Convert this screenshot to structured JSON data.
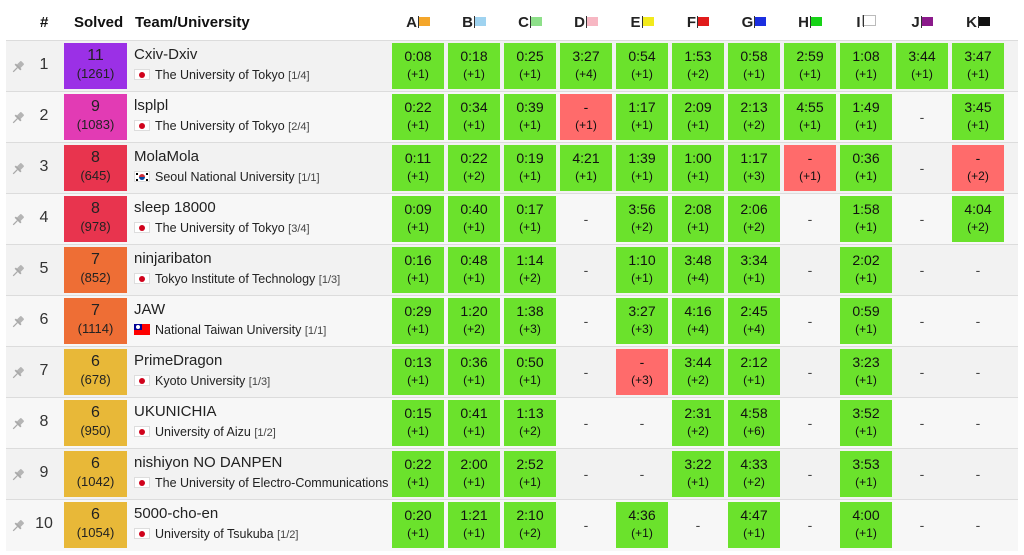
{
  "header": {
    "rank": "#",
    "solved": "Solved",
    "team": "Team/University",
    "problems": [
      {
        "label": "A",
        "flag_color": "#f4a62a"
      },
      {
        "label": "B",
        "flag_color": "#9fd3f0"
      },
      {
        "label": "C",
        "flag_color": "#8ee08a"
      },
      {
        "label": "D",
        "flag_color": "#f7b7c3"
      },
      {
        "label": "E",
        "flag_color": "#f2ea1c"
      },
      {
        "label": "F",
        "flag_color": "#e11b1b"
      },
      {
        "label": "G",
        "flag_color": "#1b2fe0"
      },
      {
        "label": "H",
        "flag_color": "#17d317"
      },
      {
        "label": "I",
        "flag_color": "#ffffff"
      },
      {
        "label": "J",
        "flag_color": "#8b1a8b"
      },
      {
        "label": "K",
        "flag_color": "#111111"
      }
    ]
  },
  "colors": {
    "accepted": "#6be22c",
    "rejected": "#ff6b6b"
  },
  "rows": [
    {
      "rank": "1",
      "solved": "11",
      "penalty": "(1261)",
      "solved_color": "#9b30e6",
      "team": "Cxiv-Dxiv",
      "country": "jp",
      "university": "The University of Tokyo",
      "count": "[1/4]",
      "cells": [
        [
          "ac",
          "0:08",
          "(+1)"
        ],
        [
          "ac",
          "0:18",
          "(+1)"
        ],
        [
          "ac",
          "0:25",
          "(+1)"
        ],
        [
          "ac",
          "3:27",
          "(+4)"
        ],
        [
          "ac",
          "0:54",
          "(+1)"
        ],
        [
          "ac",
          "1:53",
          "(+2)"
        ],
        [
          "ac",
          "0:58",
          "(+1)"
        ],
        [
          "ac",
          "2:59",
          "(+1)"
        ],
        [
          "ac",
          "1:08",
          "(+1)"
        ],
        [
          "ac",
          "3:44",
          "(+1)"
        ],
        [
          "ac",
          "3:47",
          "(+1)"
        ]
      ]
    },
    {
      "rank": "2",
      "solved": "9",
      "penalty": "(1083)",
      "solved_color": "#e23bb4",
      "team": "lsplpl",
      "country": "jp",
      "university": "The University of Tokyo",
      "count": "[2/4]",
      "cells": [
        [
          "ac",
          "0:22",
          "(+1)"
        ],
        [
          "ac",
          "0:34",
          "(+1)"
        ],
        [
          "ac",
          "0:39",
          "(+1)"
        ],
        [
          "wa",
          "-",
          "(+1)"
        ],
        [
          "ac",
          "1:17",
          "(+1)"
        ],
        [
          "ac",
          "2:09",
          "(+1)"
        ],
        [
          "ac",
          "2:13",
          "(+2)"
        ],
        [
          "ac",
          "4:55",
          "(+1)"
        ],
        [
          "ac",
          "1:49",
          "(+1)"
        ],
        [
          "none",
          "-",
          ""
        ],
        [
          "ac",
          "3:45",
          "(+1)"
        ]
      ]
    },
    {
      "rank": "3",
      "solved": "8",
      "penalty": "(645)",
      "solved_color": "#e8344e",
      "team": "MolaMola",
      "country": "kr",
      "university": "Seoul National University",
      "count": "[1/1]",
      "cells": [
        [
          "ac",
          "0:11",
          "(+1)"
        ],
        [
          "ac",
          "0:22",
          "(+2)"
        ],
        [
          "ac",
          "0:19",
          "(+1)"
        ],
        [
          "ac",
          "4:21",
          "(+1)"
        ],
        [
          "ac",
          "1:39",
          "(+1)"
        ],
        [
          "ac",
          "1:00",
          "(+1)"
        ],
        [
          "ac",
          "1:17",
          "(+3)"
        ],
        [
          "wa",
          "-",
          "(+1)"
        ],
        [
          "ac",
          "0:36",
          "(+1)"
        ],
        [
          "none",
          "-",
          ""
        ],
        [
          "wa",
          "-",
          "(+2)"
        ]
      ]
    },
    {
      "rank": "4",
      "solved": "8",
      "penalty": "(978)",
      "solved_color": "#e8344e",
      "team": "sleep 18000",
      "country": "jp",
      "university": "The University of Tokyo",
      "count": "[3/4]",
      "cells": [
        [
          "ac",
          "0:09",
          "(+1)"
        ],
        [
          "ac",
          "0:40",
          "(+1)"
        ],
        [
          "ac",
          "0:17",
          "(+1)"
        ],
        [
          "none",
          "-",
          ""
        ],
        [
          "ac",
          "3:56",
          "(+2)"
        ],
        [
          "ac",
          "2:08",
          "(+1)"
        ],
        [
          "ac",
          "2:06",
          "(+2)"
        ],
        [
          "none",
          "-",
          ""
        ],
        [
          "ac",
          "1:58",
          "(+1)"
        ],
        [
          "none",
          "-",
          ""
        ],
        [
          "ac",
          "4:04",
          "(+2)"
        ]
      ]
    },
    {
      "rank": "5",
      "solved": "7",
      "penalty": "(852)",
      "solved_color": "#ee6e35",
      "team": "ninjaribaton",
      "country": "jp",
      "university": "Tokyo Institute of Technology",
      "count": "[1/3]",
      "cells": [
        [
          "ac",
          "0:16",
          "(+1)"
        ],
        [
          "ac",
          "0:48",
          "(+1)"
        ],
        [
          "ac",
          "1:14",
          "(+2)"
        ],
        [
          "none",
          "-",
          ""
        ],
        [
          "ac",
          "1:10",
          "(+1)"
        ],
        [
          "ac",
          "3:48",
          "(+4)"
        ],
        [
          "ac",
          "3:34",
          "(+1)"
        ],
        [
          "none",
          "-",
          ""
        ],
        [
          "ac",
          "2:02",
          "(+1)"
        ],
        [
          "none",
          "-",
          ""
        ],
        [
          "none",
          "-",
          ""
        ]
      ]
    },
    {
      "rank": "6",
      "solved": "7",
      "penalty": "(1114)",
      "solved_color": "#ee6e35",
      "team": "JAW",
      "country": "tw",
      "university": "National Taiwan University",
      "count": "[1/1]",
      "cells": [
        [
          "ac",
          "0:29",
          "(+1)"
        ],
        [
          "ac",
          "1:20",
          "(+2)"
        ],
        [
          "ac",
          "1:38",
          "(+3)"
        ],
        [
          "none",
          "-",
          ""
        ],
        [
          "ac",
          "3:27",
          "(+3)"
        ],
        [
          "ac",
          "4:16",
          "(+4)"
        ],
        [
          "ac",
          "2:45",
          "(+4)"
        ],
        [
          "none",
          "-",
          ""
        ],
        [
          "ac",
          "0:59",
          "(+1)"
        ],
        [
          "none",
          "-",
          ""
        ],
        [
          "none",
          "-",
          ""
        ]
      ]
    },
    {
      "rank": "7",
      "solved": "6",
      "penalty": "(678)",
      "solved_color": "#e8b838",
      "team": "PrimeDragon",
      "country": "jp",
      "university": "Kyoto University",
      "count": "[1/3]",
      "cells": [
        [
          "ac",
          "0:13",
          "(+1)"
        ],
        [
          "ac",
          "0:36",
          "(+1)"
        ],
        [
          "ac",
          "0:50",
          "(+1)"
        ],
        [
          "none",
          "-",
          ""
        ],
        [
          "wa",
          "-",
          "(+3)"
        ],
        [
          "ac",
          "3:44",
          "(+2)"
        ],
        [
          "ac",
          "2:12",
          "(+1)"
        ],
        [
          "none",
          "-",
          ""
        ],
        [
          "ac",
          "3:23",
          "(+1)"
        ],
        [
          "none",
          "-",
          ""
        ],
        [
          "none",
          "-",
          ""
        ]
      ]
    },
    {
      "rank": "8",
      "solved": "6",
      "penalty": "(950)",
      "solved_color": "#e8b838",
      "team": "UKUNICHIA",
      "country": "jp",
      "university": "University of Aizu",
      "count": "[1/2]",
      "cells": [
        [
          "ac",
          "0:15",
          "(+1)"
        ],
        [
          "ac",
          "0:41",
          "(+1)"
        ],
        [
          "ac",
          "1:13",
          "(+2)"
        ],
        [
          "none",
          "-",
          ""
        ],
        [
          "none",
          "-",
          ""
        ],
        [
          "ac",
          "2:31",
          "(+2)"
        ],
        [
          "ac",
          "4:58",
          "(+6)"
        ],
        [
          "none",
          "-",
          ""
        ],
        [
          "ac",
          "3:52",
          "(+1)"
        ],
        [
          "none",
          "-",
          ""
        ],
        [
          "none",
          "-",
          ""
        ]
      ]
    },
    {
      "rank": "9",
      "solved": "6",
      "penalty": "(1042)",
      "solved_color": "#e8b838",
      "team": "nishiyon NO DANPEN",
      "country": "jp",
      "university": "The University of Electro-Communications",
      "count": "",
      "cells": [
        [
          "ac",
          "0:22",
          "(+1)"
        ],
        [
          "ac",
          "2:00",
          "(+1)"
        ],
        [
          "ac",
          "2:52",
          "(+1)"
        ],
        [
          "none",
          "-",
          ""
        ],
        [
          "none",
          "-",
          ""
        ],
        [
          "ac",
          "3:22",
          "(+1)"
        ],
        [
          "ac",
          "4:33",
          "(+2)"
        ],
        [
          "none",
          "-",
          ""
        ],
        [
          "ac",
          "3:53",
          "(+1)"
        ],
        [
          "none",
          "-",
          ""
        ],
        [
          "none",
          "-",
          ""
        ]
      ]
    },
    {
      "rank": "10",
      "solved": "6",
      "penalty": "(1054)",
      "solved_color": "#e8b838",
      "team": "5000-cho-en",
      "country": "jp",
      "university": "University of Tsukuba",
      "count": "[1/2]",
      "cells": [
        [
          "ac",
          "0:20",
          "(+1)"
        ],
        [
          "ac",
          "1:21",
          "(+1)"
        ],
        [
          "ac",
          "2:10",
          "(+2)"
        ],
        [
          "none",
          "-",
          ""
        ],
        [
          "ac",
          "4:36",
          "(+1)"
        ],
        [
          "none",
          "-",
          ""
        ],
        [
          "ac",
          "4:47",
          "(+1)"
        ],
        [
          "none",
          "-",
          ""
        ],
        [
          "ac",
          "4:00",
          "(+1)"
        ],
        [
          "none",
          "-",
          ""
        ],
        [
          "none",
          "-",
          ""
        ]
      ]
    }
  ]
}
